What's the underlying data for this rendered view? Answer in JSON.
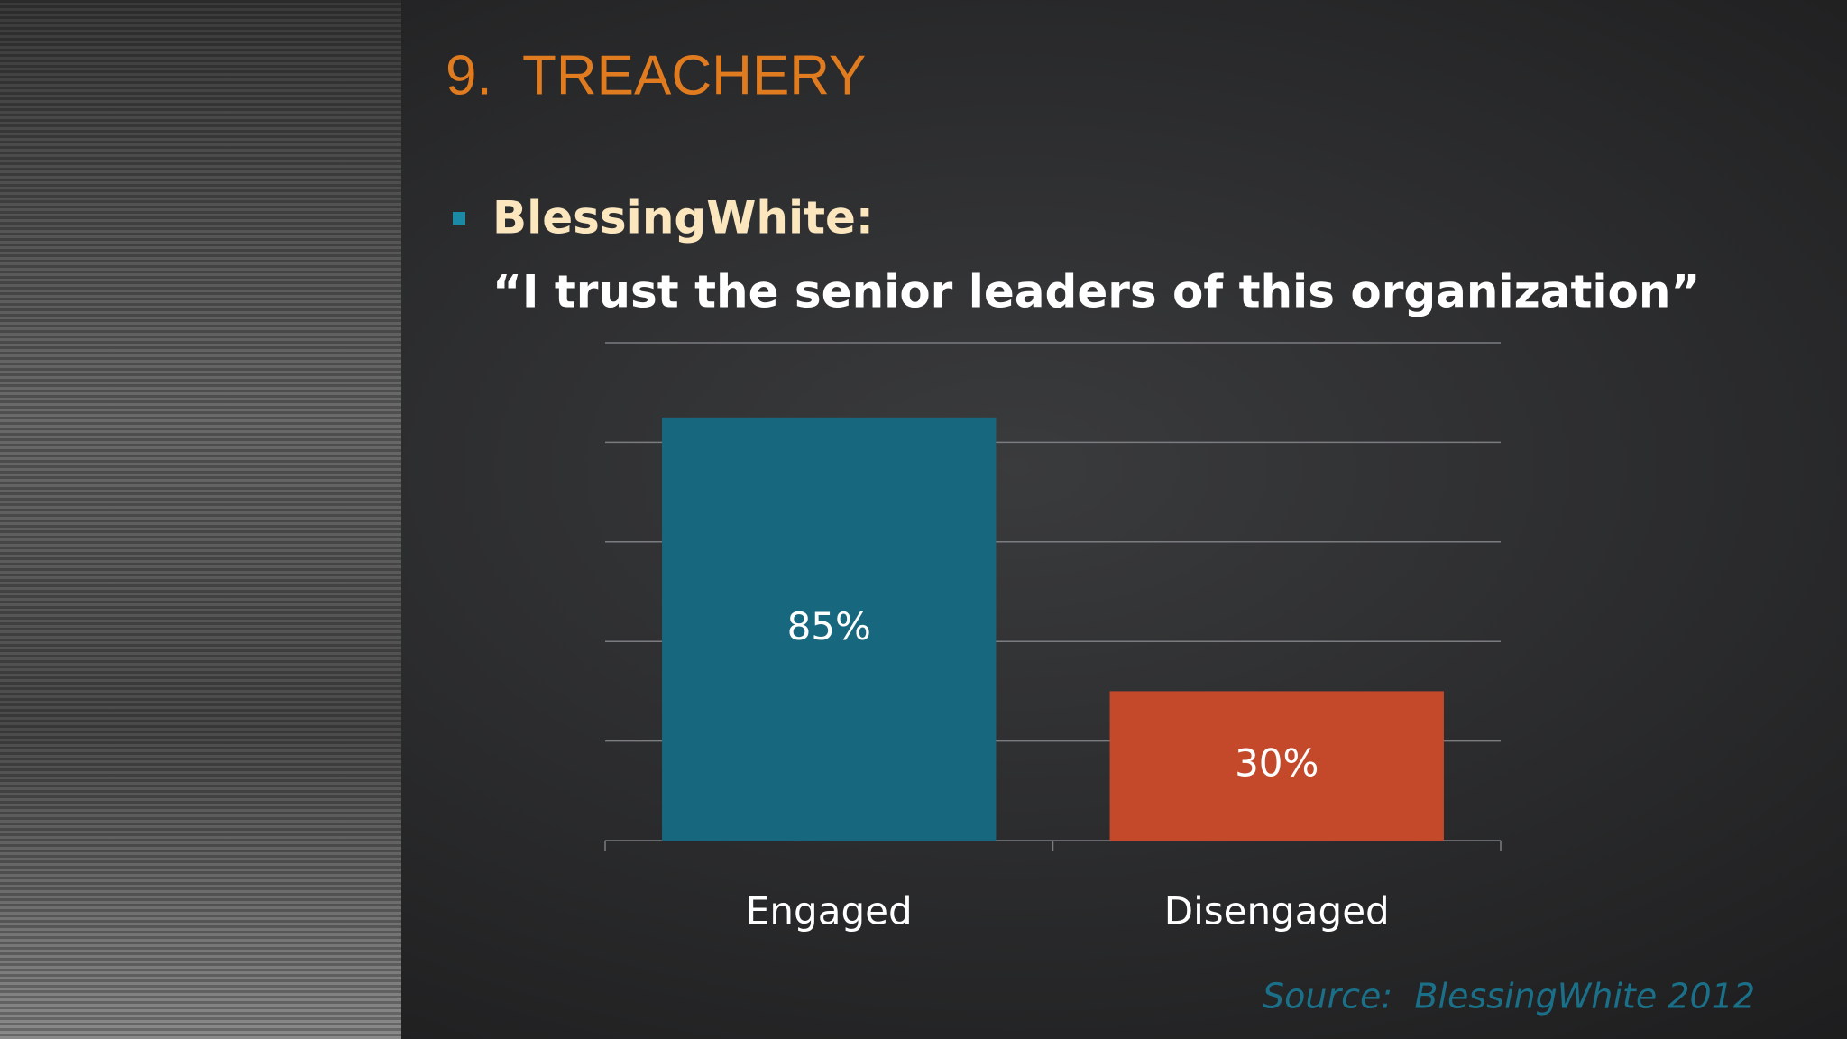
{
  "slide": {
    "title": "9.  TREACHERY",
    "bullet_heading": "BlessingWhite:",
    "bullet_text": "“I trust the senior leaders of this organization”",
    "source": "Source:  BlessingWhite 2012"
  },
  "chart_data": {
    "type": "bar",
    "categories": [
      "Engaged",
      "Disengaged"
    ],
    "values": [
      85,
      30
    ],
    "value_labels": [
      "85%",
      "30%"
    ],
    "colors": [
      "#17687e",
      "#c4492b"
    ],
    "ylim": [
      0,
      100
    ],
    "yticks": [
      0,
      20,
      40,
      60,
      80,
      100
    ],
    "grid": true
  }
}
